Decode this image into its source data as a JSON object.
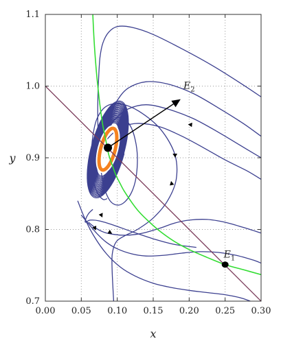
{
  "chart_data": {
    "type": "line",
    "title": "",
    "xlabel": "x",
    "ylabel": "y",
    "xlim": [
      0.0,
      0.3
    ],
    "ylim": [
      0.7,
      1.1
    ],
    "x_ticks": [
      "0.00",
      "0.05",
      "0.10",
      "0.15",
      "0.20",
      "0.25",
      "0.30"
    ],
    "y_ticks": [
      "0.7",
      "0.8",
      "0.9",
      "1.0",
      "1.1"
    ],
    "grid": true,
    "legend": "none",
    "colors": {
      "trajectory": "#3b3f8f",
      "y_nullcline": "#33dd33",
      "x_nullcline": "#7a3b5a",
      "limit_cycle": "#f58220",
      "equilibrium": "#000000",
      "grid": "#9a9a9a"
    },
    "nullcline_green": {
      "x": [
        0.066,
        0.068,
        0.071,
        0.074,
        0.077,
        0.08,
        0.084,
        0.088,
        0.093,
        0.098,
        0.104,
        0.11,
        0.12,
        0.13,
        0.145,
        0.16,
        0.18,
        0.2,
        0.225,
        0.25,
        0.275,
        0.3
      ],
      "y": [
        1.1,
        1.06,
        1.02,
        0.99,
        0.965,
        0.945,
        0.925,
        0.905,
        0.89,
        0.876,
        0.864,
        0.853,
        0.838,
        0.825,
        0.81,
        0.797,
        0.783,
        0.772,
        0.761,
        0.751,
        0.744,
        0.737
      ]
    },
    "nullcline_purple": {
      "x": [
        0.0,
        0.3
      ],
      "y": [
        1.0,
        0.7
      ]
    },
    "limit_cycle": {
      "center": [
        0.087,
        0.912
      ],
      "rx": 0.01,
      "ry": 0.03,
      "rotation_deg": 15
    },
    "trajectories": [
      {
        "x": [
          0.3,
          0.28,
          0.25,
          0.22,
          0.19,
          0.16,
          0.13,
          0.11,
          0.095,
          0.086
        ],
        "y": [
          0.87,
          0.882,
          0.897,
          0.914,
          0.93,
          0.943,
          0.948,
          0.944,
          0.935,
          0.926
        ]
      },
      {
        "x": [
          0.3,
          0.27,
          0.24,
          0.205,
          0.17,
          0.14,
          0.115,
          0.098,
          0.088
        ],
        "y": [
          0.9,
          0.918,
          0.936,
          0.955,
          0.968,
          0.974,
          0.968,
          0.955,
          0.94
        ]
      },
      {
        "x": [
          0.3,
          0.275,
          0.24,
          0.205,
          0.17,
          0.14,
          0.115,
          0.1,
          0.091
        ],
        "y": [
          0.93,
          0.948,
          0.97,
          0.99,
          1.003,
          1.006,
          0.997,
          0.98,
          0.96
        ]
      },
      {
        "x": [
          0.3,
          0.27,
          0.23,
          0.19,
          0.15,
          0.12,
          0.1,
          0.088,
          0.08,
          0.076,
          0.074,
          0.073,
          0.073,
          0.074,
          0.077,
          0.082,
          0.09,
          0.1,
          0.11,
          0.12,
          0.126,
          0.128,
          0.125,
          0.118,
          0.108,
          0.098,
          0.09,
          0.086
        ],
        "y": [
          0.985,
          1.005,
          1.03,
          1.052,
          1.072,
          1.082,
          1.083,
          1.075,
          1.06,
          1.04,
          1.01,
          0.98,
          0.95,
          0.915,
          0.885,
          0.858,
          0.84,
          0.834,
          0.838,
          0.852,
          0.872,
          0.9,
          0.925,
          0.945,
          0.955,
          0.955,
          0.945,
          0.93
        ]
      },
      {
        "x": [
          0.095,
          0.093,
          0.093,
          0.098,
          0.11,
          0.128,
          0.15,
          0.17,
          0.182,
          0.18,
          0.16,
          0.13,
          0.105,
          0.085,
          0.072,
          0.066,
          0.064,
          0.066,
          0.072,
          0.08,
          0.086
        ],
        "y": [
          0.7,
          0.74,
          0.765,
          0.782,
          0.791,
          0.8,
          0.816,
          0.84,
          0.87,
          0.905,
          0.94,
          0.965,
          0.975,
          0.972,
          0.955,
          0.93,
          0.9,
          0.872,
          0.852,
          0.842,
          0.843
        ]
      },
      {
        "x": [
          0.21,
          0.18,
          0.15,
          0.12,
          0.095,
          0.075,
          0.062,
          0.056,
          0.056,
          0.06,
          0.066
        ],
        "y": [
          0.775,
          0.779,
          0.787,
          0.797,
          0.806,
          0.812,
          0.813,
          0.81,
          0.814,
          0.822,
          0.828
        ]
      },
      {
        "x": [
          0.06,
          0.07,
          0.082,
          0.096,
          0.11,
          0.125,
          0.14,
          0.16,
          0.18,
          0.2,
          0.225,
          0.25,
          0.275,
          0.3
        ],
        "y": [
          0.81,
          0.802,
          0.796,
          0.793,
          0.792,
          0.793,
          0.796,
          0.802,
          0.809,
          0.813,
          0.814,
          0.81,
          0.803,
          0.795
        ]
      },
      {
        "x": [
          0.05,
          0.06,
          0.072,
          0.085,
          0.1,
          0.12,
          0.14,
          0.165,
          0.19,
          0.215,
          0.24,
          0.265,
          0.29,
          0.3
        ],
        "y": [
          0.82,
          0.808,
          0.794,
          0.782,
          0.773,
          0.766,
          0.763,
          0.764,
          0.767,
          0.769,
          0.768,
          0.764,
          0.757,
          0.753
        ]
      },
      {
        "x": [
          0.045,
          0.055,
          0.068,
          0.085,
          0.105,
          0.125,
          0.15,
          0.175,
          0.2,
          0.225,
          0.25,
          0.27,
          0.285
        ],
        "y": [
          0.84,
          0.815,
          0.79,
          0.766,
          0.747,
          0.735,
          0.725,
          0.719,
          0.715,
          0.712,
          0.709,
          0.705,
          0.7
        ]
      }
    ],
    "arrows": [
      {
        "x": 0.204,
        "y": 0.946,
        "dx": -1.0,
        "dy": 0.1
      },
      {
        "x": 0.182,
        "y": 0.903,
        "dx": -1.0,
        "dy": 0.55
      },
      {
        "x": 0.176,
        "y": 0.862,
        "dx": -0.2,
        "dy": 1.0
      },
      {
        "x": 0.077,
        "y": 0.822,
        "dx": 0.45,
        "dy": -1.0
      },
      {
        "x": 0.068,
        "y": 0.804,
        "dx": 0.45,
        "dy": -1.0
      },
      {
        "x": 0.088,
        "y": 0.797,
        "dx": 1.0,
        "dy": -0.6
      }
    ],
    "points": [
      {
        "label": "E",
        "sub": "1",
        "x": 0.25,
        "y": 0.751
      },
      {
        "label": "E",
        "sub": "2",
        "x": 0.087,
        "y": 0.914
      }
    ],
    "annotation_arrow": {
      "from": [
        0.087,
        0.914
      ],
      "to": [
        0.187,
        0.981
      ],
      "label_pos": [
        0.192,
        0.996
      ]
    }
  }
}
